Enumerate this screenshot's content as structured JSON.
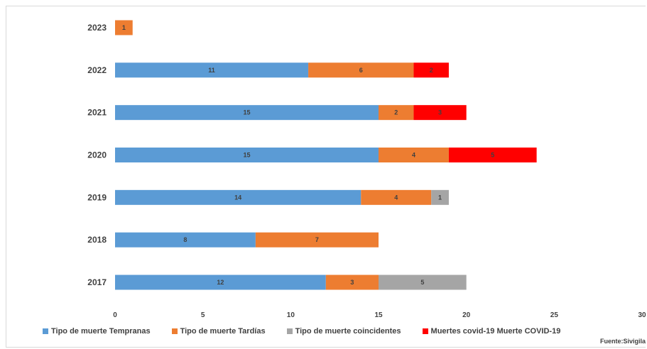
{
  "chart_data": {
    "type": "bar",
    "orientation": "horizontal",
    "stacked": true,
    "categories": [
      "2017",
      "2018",
      "2019",
      "2020",
      "2021",
      "2022",
      "2023"
    ],
    "series": [
      {
        "name": "Tipo de muerte Tempranas",
        "color": "#5b9bd5",
        "values": [
          12,
          8,
          14,
          15,
          15,
          11,
          0
        ]
      },
      {
        "name": "Tipo de muerte Tardías",
        "color": "#ed7d31",
        "values": [
          3,
          7,
          4,
          4,
          2,
          6,
          1
        ]
      },
      {
        "name": "Tipo de muerte  coincidentes",
        "color": "#a5a5a5",
        "values": [
          5,
          0,
          1,
          0,
          0,
          0,
          0
        ]
      },
      {
        "name": "Muertes covid-19 Muerte COVID-19",
        "color": "#ff0000",
        "values": [
          0,
          0,
          0,
          5,
          3,
          2,
          0
        ]
      }
    ],
    "xlim": [
      0,
      30
    ],
    "xticks": [
      0,
      5,
      10,
      15,
      20,
      25,
      30
    ],
    "grid": false,
    "legend_position": "bottom"
  },
  "source": "Fuente:Sivigila"
}
